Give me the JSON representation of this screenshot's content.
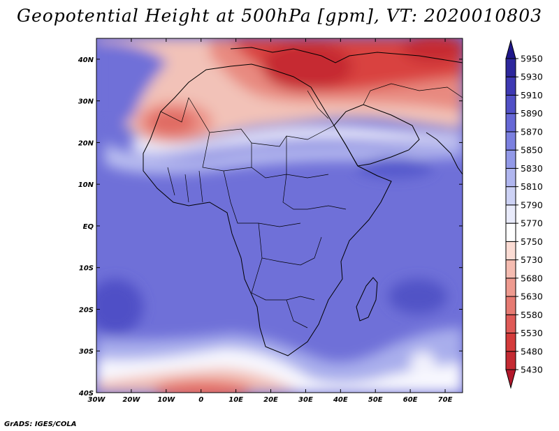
{
  "title": "Geopotential Height at 500hPa [gpm], VT: 2020010803",
  "credit": "GrADS: IGES/COLA",
  "map": {
    "lon_range": [
      -30,
      75
    ],
    "lat_range": [
      -40,
      45
    ],
    "x_ticks": [
      "30W",
      "20W",
      "10W",
      "0",
      "10E",
      "20E",
      "30E",
      "40E",
      "50E",
      "60E",
      "70E"
    ],
    "x_tick_values": [
      -30,
      -20,
      -10,
      0,
      10,
      20,
      30,
      40,
      50,
      60,
      70
    ],
    "y_ticks": [
      "40S",
      "30S",
      "20S",
      "10S",
      "EQ",
      "10N",
      "20N",
      "30N",
      "40N"
    ],
    "y_tick_values": [
      -40,
      -30,
      -20,
      -10,
      0,
      10,
      20,
      30,
      40
    ]
  },
  "colorbar": {
    "levels": [
      "5430",
      "5480",
      "5530",
      "5580",
      "5630",
      "5680",
      "5730",
      "5750",
      "5770",
      "5790",
      "5810",
      "5830",
      "5850",
      "5870",
      "5890",
      "5910",
      "5930",
      "5950"
    ],
    "colors": [
      "#b2182b",
      "#c42a32",
      "#d43b3b",
      "#df5a57",
      "#e67a72",
      "#ee9a8f",
      "#f5bcb1",
      "#fbdcd4",
      "#ffffff",
      "#e9ebfb",
      "#cdd2f5",
      "#b0b6ef",
      "#9299e8",
      "#7b80e0",
      "#6668d6",
      "#5150c6",
      "#3e39b3",
      "#2d279c",
      "#1f178a"
    ]
  },
  "colors": {
    "ocean_base": "#6f70d8",
    "land_outline": "#000000"
  }
}
